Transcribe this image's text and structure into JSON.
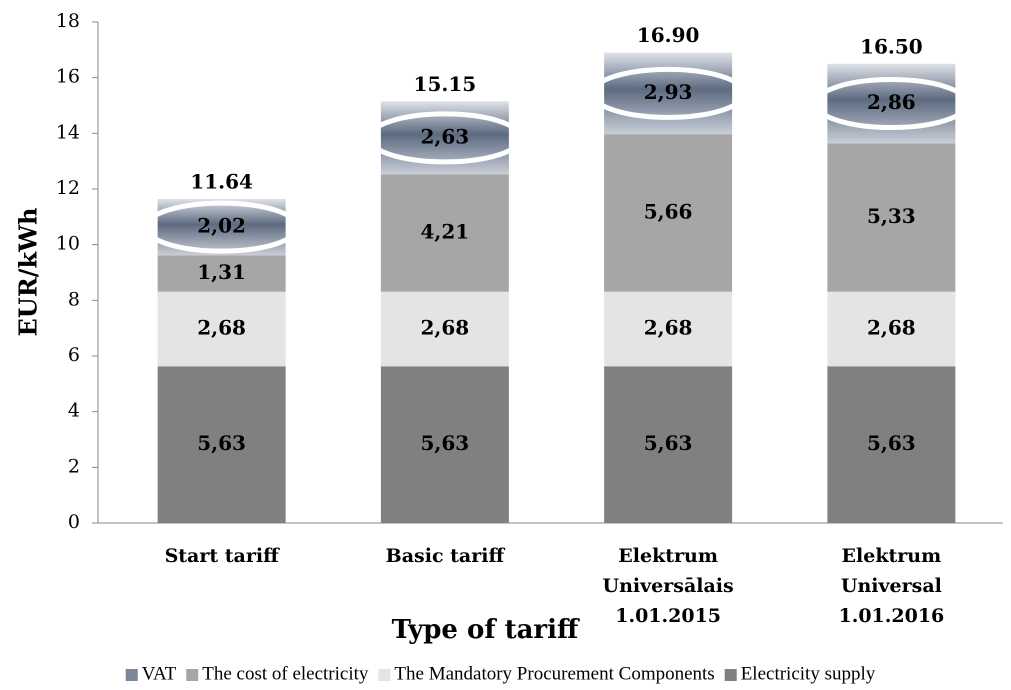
{
  "chart_data": {
    "type": "stacked_bar",
    "categories": [
      [
        "Start tariff"
      ],
      [
        "Basic tariff"
      ],
      [
        "Elektrum",
        "Universālais",
        "1.01.2015"
      ],
      [
        "Elektrum",
        "Universal",
        "1.01.2016"
      ]
    ],
    "series": [
      {
        "name": "Electricity supply",
        "color": "#808080",
        "values": [
          5.63,
          5.63,
          5.63,
          5.63
        ],
        "value_labels": [
          "5,63",
          "5,63",
          "5,63",
          "5,63"
        ]
      },
      {
        "name": "The Mandatory Procurement Components",
        "color": "#e2e4e6",
        "values": [
          2.68,
          2.68,
          2.68,
          2.68
        ],
        "value_labels": [
          "2,68",
          "2,68",
          "2,68",
          "2,68"
        ]
      },
      {
        "name": "The cost of electricity",
        "color": "#a6a6a6",
        "values": [
          1.31,
          4.21,
          5.66,
          5.33
        ],
        "value_labels": [
          "1,31",
          "4,21",
          "5,66",
          "5,33"
        ]
      },
      {
        "name": "VAT",
        "color": "#7d8699",
        "values": [
          2.02,
          2.63,
          2.93,
          2.86
        ],
        "value_labels": [
          "2,02",
          "2,63",
          "2,93",
          "2,86"
        ],
        "highlight": true
      }
    ],
    "totals": [
      11.64,
      15.15,
      16.9,
      16.5
    ],
    "total_labels": [
      "11.64",
      "15.15",
      "16.90",
      "16.50"
    ],
    "ylim": [
      0,
      18
    ],
    "yticks": [
      0,
      2,
      4,
      6,
      8,
      10,
      12,
      14,
      16,
      18
    ],
    "ylabel": "EUR/kWh",
    "xlabel": "Type of tariff",
    "legend": "bottom",
    "grid": false
  }
}
